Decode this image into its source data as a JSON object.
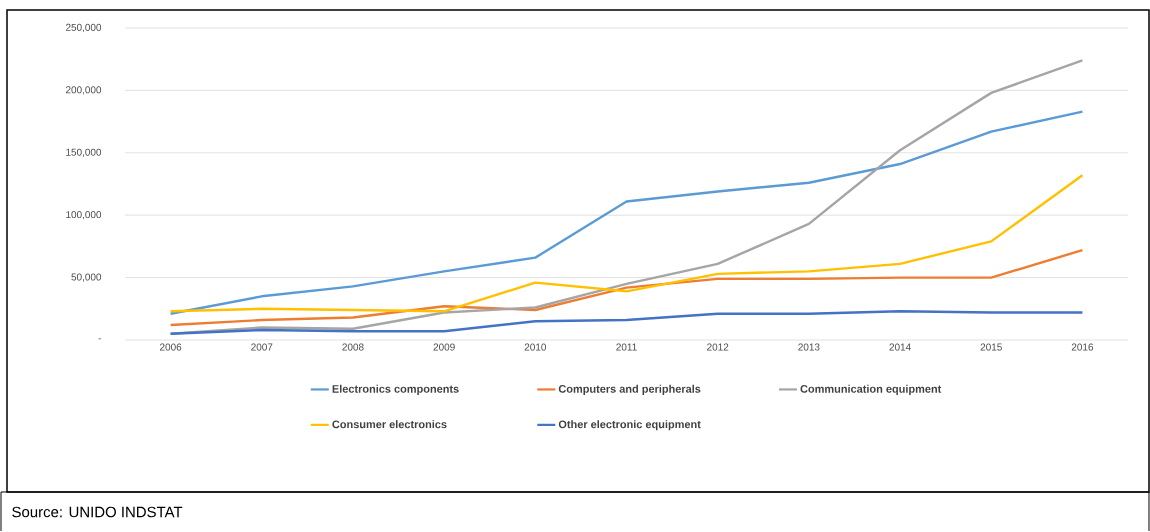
{
  "chart_data": {
    "type": "line",
    "categories": [
      "2006",
      "2007",
      "2008",
      "2009",
      "2010",
      "2011",
      "2012",
      "2013",
      "2014",
      "2015",
      "2016"
    ],
    "series": [
      {
        "name": "Electronics components",
        "color": "#5b9bd5",
        "values": [
          21000,
          35000,
          43000,
          55000,
          66000,
          111000,
          119000,
          126000,
          141000,
          167000,
          183000
        ]
      },
      {
        "name": "Computers and peripherals",
        "color": "#ed7d31",
        "values": [
          12000,
          16000,
          18000,
          27000,
          24000,
          42000,
          49000,
          49000,
          50000,
          50000,
          72000
        ]
      },
      {
        "name": "Communication equipment",
        "color": "#a5a5a5",
        "values": [
          5000,
          10000,
          9000,
          22000,
          26000,
          45000,
          61000,
          93000,
          152000,
          198000,
          224000
        ]
      },
      {
        "name": "Consumer electronics",
        "color": "#ffc000",
        "values": [
          23000,
          25000,
          24000,
          23000,
          46000,
          39000,
          53000,
          55000,
          61000,
          79000,
          132000
        ]
      },
      {
        "name": "Other electronic equipment",
        "color": "#4472c4",
        "values": [
          5000,
          8000,
          7000,
          7000,
          15000,
          16000,
          21000,
          21000,
          23000,
          22000,
          22000
        ]
      }
    ],
    "ylim": [
      0,
      250000
    ],
    "yticks": [
      {
        "value": 0,
        "label": "-"
      },
      {
        "value": 50000,
        "label": "50,000"
      },
      {
        "value": 100000,
        "label": "100,000"
      },
      {
        "value": 150000,
        "label": "150,000"
      },
      {
        "value": 200000,
        "label": "200,000"
      },
      {
        "value": 250000,
        "label": "250,000"
      }
    ],
    "grid": "y",
    "legend": "bottom",
    "marker": "none",
    "line_style": "solid",
    "annotations": [
      "Source: UNIDO INDSTAT"
    ]
  }
}
